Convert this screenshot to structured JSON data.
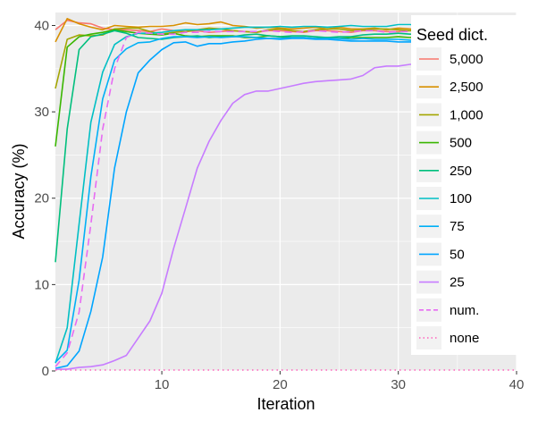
{
  "chart_data": {
    "type": "line",
    "title": "",
    "xlabel": "Iteration",
    "ylabel": "Accuracy (%)",
    "xlim": [
      1,
      40
    ],
    "ylim": [
      0,
      41.5
    ],
    "xticks": [
      10,
      20,
      30,
      40
    ],
    "yticks": [
      0,
      10,
      20,
      30,
      40
    ],
    "grid": true,
    "legend": {
      "title": "Seed dict.",
      "position": "right-inside"
    },
    "x": [
      1,
      2,
      3,
      4,
      5,
      6,
      7,
      8,
      9,
      10,
      11,
      12,
      13,
      14,
      15,
      16,
      17,
      18,
      19,
      20,
      21,
      22,
      23,
      24,
      25,
      26,
      27,
      28,
      29,
      30,
      31,
      32,
      33,
      34,
      35,
      36,
      37,
      38,
      39,
      40
    ],
    "series": [
      {
        "name": "5,000",
        "color": "#F8766D",
        "dash": "solid",
        "values": [
          39.5,
          40.6,
          40.3,
          40.2,
          39.7,
          39.5,
          39.5,
          39.4,
          39.3,
          39.6,
          39.4,
          39.3,
          39.4,
          39.2,
          39.3,
          39.4,
          39.3,
          39.2,
          39.4,
          39.4,
          39.3,
          39.2,
          39.4,
          39.4,
          39.3,
          39.2,
          39.4,
          39.4,
          39.3,
          39.3,
          39.4,
          39.4,
          39.3,
          39.3,
          39.4,
          39.4,
          39.3,
          39.3,
          39.3,
          39.3
        ]
      },
      {
        "name": "2,500",
        "color": "#D89000",
        "dash": "solid",
        "values": [
          38.1,
          40.8,
          40.2,
          39.8,
          39.5,
          40.0,
          39.9,
          39.8,
          39.9,
          39.9,
          40.0,
          40.3,
          40.1,
          40.2,
          40.4,
          40.0,
          39.9,
          39.7,
          39.8,
          39.7,
          39.6,
          39.7,
          39.8,
          39.6,
          39.8,
          39.6,
          39.6,
          39.7,
          39.5,
          39.7,
          39.6,
          39.4,
          39.6,
          39.4,
          39.4,
          39.5,
          39.5,
          39.4,
          39.4,
          39.4
        ]
      },
      {
        "name": "1,000",
        "color": "#A3A500",
        "dash": "solid",
        "values": [
          32.7,
          38.4,
          38.9,
          38.8,
          38.9,
          39.6,
          39.7,
          39.7,
          39.3,
          39.0,
          39.2,
          39.3,
          39.5,
          39.7,
          39.6,
          39.4,
          39.3,
          39.2,
          39.5,
          39.6,
          39.4,
          39.3,
          39.5,
          39.6,
          39.6,
          39.4,
          39.5,
          39.6,
          39.6,
          39.5,
          39.4,
          39.4,
          39.3,
          39.3,
          39.3,
          39.4,
          39.3,
          39.3,
          39.2,
          39.0
        ]
      },
      {
        "name": "500",
        "color": "#39B600",
        "dash": "solid",
        "values": [
          26.0,
          37.5,
          38.7,
          39.0,
          39.2,
          39.5,
          39.3,
          39.1,
          39.0,
          38.9,
          39.1,
          38.8,
          38.7,
          38.8,
          38.8,
          38.8,
          38.6,
          38.6,
          38.8,
          38.7,
          38.6,
          38.6,
          38.5,
          38.6,
          38.5,
          38.6,
          38.6,
          38.6,
          38.6,
          38.7,
          38.6,
          38.7,
          38.6,
          38.6,
          38.6,
          38.6,
          38.5,
          38.7,
          38.6,
          38.6
        ]
      },
      {
        "name": "250",
        "color": "#00BF7D",
        "dash": "solid",
        "values": [
          12.6,
          28.0,
          37.2,
          38.7,
          39.0,
          39.4,
          39.1,
          38.6,
          38.5,
          38.4,
          38.6,
          38.7,
          38.8,
          38.6,
          38.7,
          38.7,
          38.9,
          39.0,
          38.8,
          38.7,
          38.8,
          38.8,
          38.7,
          38.6,
          38.7,
          38.7,
          38.9,
          39.0,
          39.0,
          39.1,
          39.0,
          39.0,
          39.1,
          39.0,
          38.9,
          38.9,
          38.8,
          38.9,
          38.9,
          38.9
        ]
      },
      {
        "name": "100",
        "color": "#00BFC4",
        "dash": "solid",
        "values": [
          0.9,
          5.0,
          17.0,
          28.8,
          34.6,
          37.8,
          38.7,
          39.1,
          39.1,
          39.2,
          39.4,
          39.5,
          39.5,
          39.5,
          39.6,
          39.7,
          39.8,
          39.8,
          39.8,
          39.9,
          39.8,
          39.9,
          39.9,
          39.8,
          39.9,
          40.0,
          39.9,
          39.9,
          39.9,
          40.1,
          40.1,
          39.9,
          39.8,
          39.7,
          39.7,
          39.6,
          39.6,
          39.7,
          39.6,
          39.6
        ]
      },
      {
        "name": "75",
        "color": "#00B0F6",
        "dash": "solid",
        "values": [
          1.0,
          2.4,
          10.5,
          22.5,
          31.5,
          36.0,
          37.3,
          38.0,
          38.1,
          38.5,
          38.7,
          38.7,
          38.6,
          38.7,
          38.6,
          38.7,
          38.7,
          38.6,
          38.5,
          38.5,
          38.6,
          38.6,
          38.5,
          38.5,
          38.5,
          38.4,
          38.5,
          38.4,
          38.4,
          38.4,
          38.3,
          38.2,
          38.2,
          38.3,
          38.2,
          38.1,
          38.1,
          37.9,
          37.9,
          37.8
        ]
      },
      {
        "name": "50",
        "color": "#00A5FF",
        "dash": "solid",
        "values": [
          0.3,
          0.6,
          2.3,
          6.9,
          13.2,
          23.5,
          30.0,
          34.5,
          36.0,
          37.2,
          38.0,
          38.1,
          37.6,
          37.9,
          37.9,
          38.1,
          38.2,
          38.4,
          38.5,
          38.4,
          38.5,
          38.5,
          38.4,
          38.4,
          38.3,
          38.2,
          38.2,
          38.2,
          38.2,
          38.1,
          38.1,
          38.1,
          38.0,
          38.0,
          38.0,
          38.0,
          37.8,
          37.8,
          37.7,
          37.6
        ]
      },
      {
        "name": "25",
        "color": "#C77CFF",
        "dash": "solid",
        "values": [
          0.2,
          0.2,
          0.4,
          0.5,
          0.7,
          1.2,
          1.8,
          3.8,
          5.8,
          9.0,
          14.2,
          18.8,
          23.5,
          26.6,
          29.0,
          31.0,
          32.0,
          32.4,
          32.4,
          32.7,
          33.0,
          33.3,
          33.5,
          33.6,
          33.7,
          33.8,
          34.2,
          35.1,
          35.3,
          35.3,
          35.5,
          35.5,
          35.5,
          35.5,
          35.5,
          35.5,
          35.5,
          35.4,
          35.4,
          35.6
        ]
      },
      {
        "name": "num.",
        "color": "#E76BF3",
        "dash": "dashed",
        "values": [
          0.5,
          2.1,
          6.8,
          17.0,
          28.0,
          35.0,
          38.6,
          39.2,
          39.1,
          39.0,
          39.0,
          39.2,
          39.2,
          39.3,
          39.3,
          39.3,
          39.3,
          39.3,
          39.4,
          39.3,
          39.2,
          39.3,
          39.4,
          39.3,
          39.2,
          39.3,
          39.4,
          39.4,
          39.2,
          39.3,
          39.3,
          39.4,
          39.4,
          39.3,
          39.3,
          39.3,
          39.3,
          39.2,
          39.3,
          39.3
        ]
      },
      {
        "name": "none",
        "color": "#FF62BC",
        "dash": "dotted",
        "values": [
          0.1,
          0.1,
          0.1,
          0.1,
          0.1,
          0.1,
          0.1,
          0.1,
          0.1,
          0.1,
          0.1,
          0.1,
          0.1,
          0.1,
          0.1,
          0.1,
          0.1,
          0.1,
          0.1,
          0.1,
          0.1,
          0.1,
          0.1,
          0.1,
          0.1,
          0.1,
          0.1,
          0.1,
          0.1,
          0.1,
          0.1,
          0.1,
          0.1,
          0.1,
          0.1,
          0.1,
          0.1,
          0.1,
          0.1,
          0.1
        ]
      }
    ]
  }
}
